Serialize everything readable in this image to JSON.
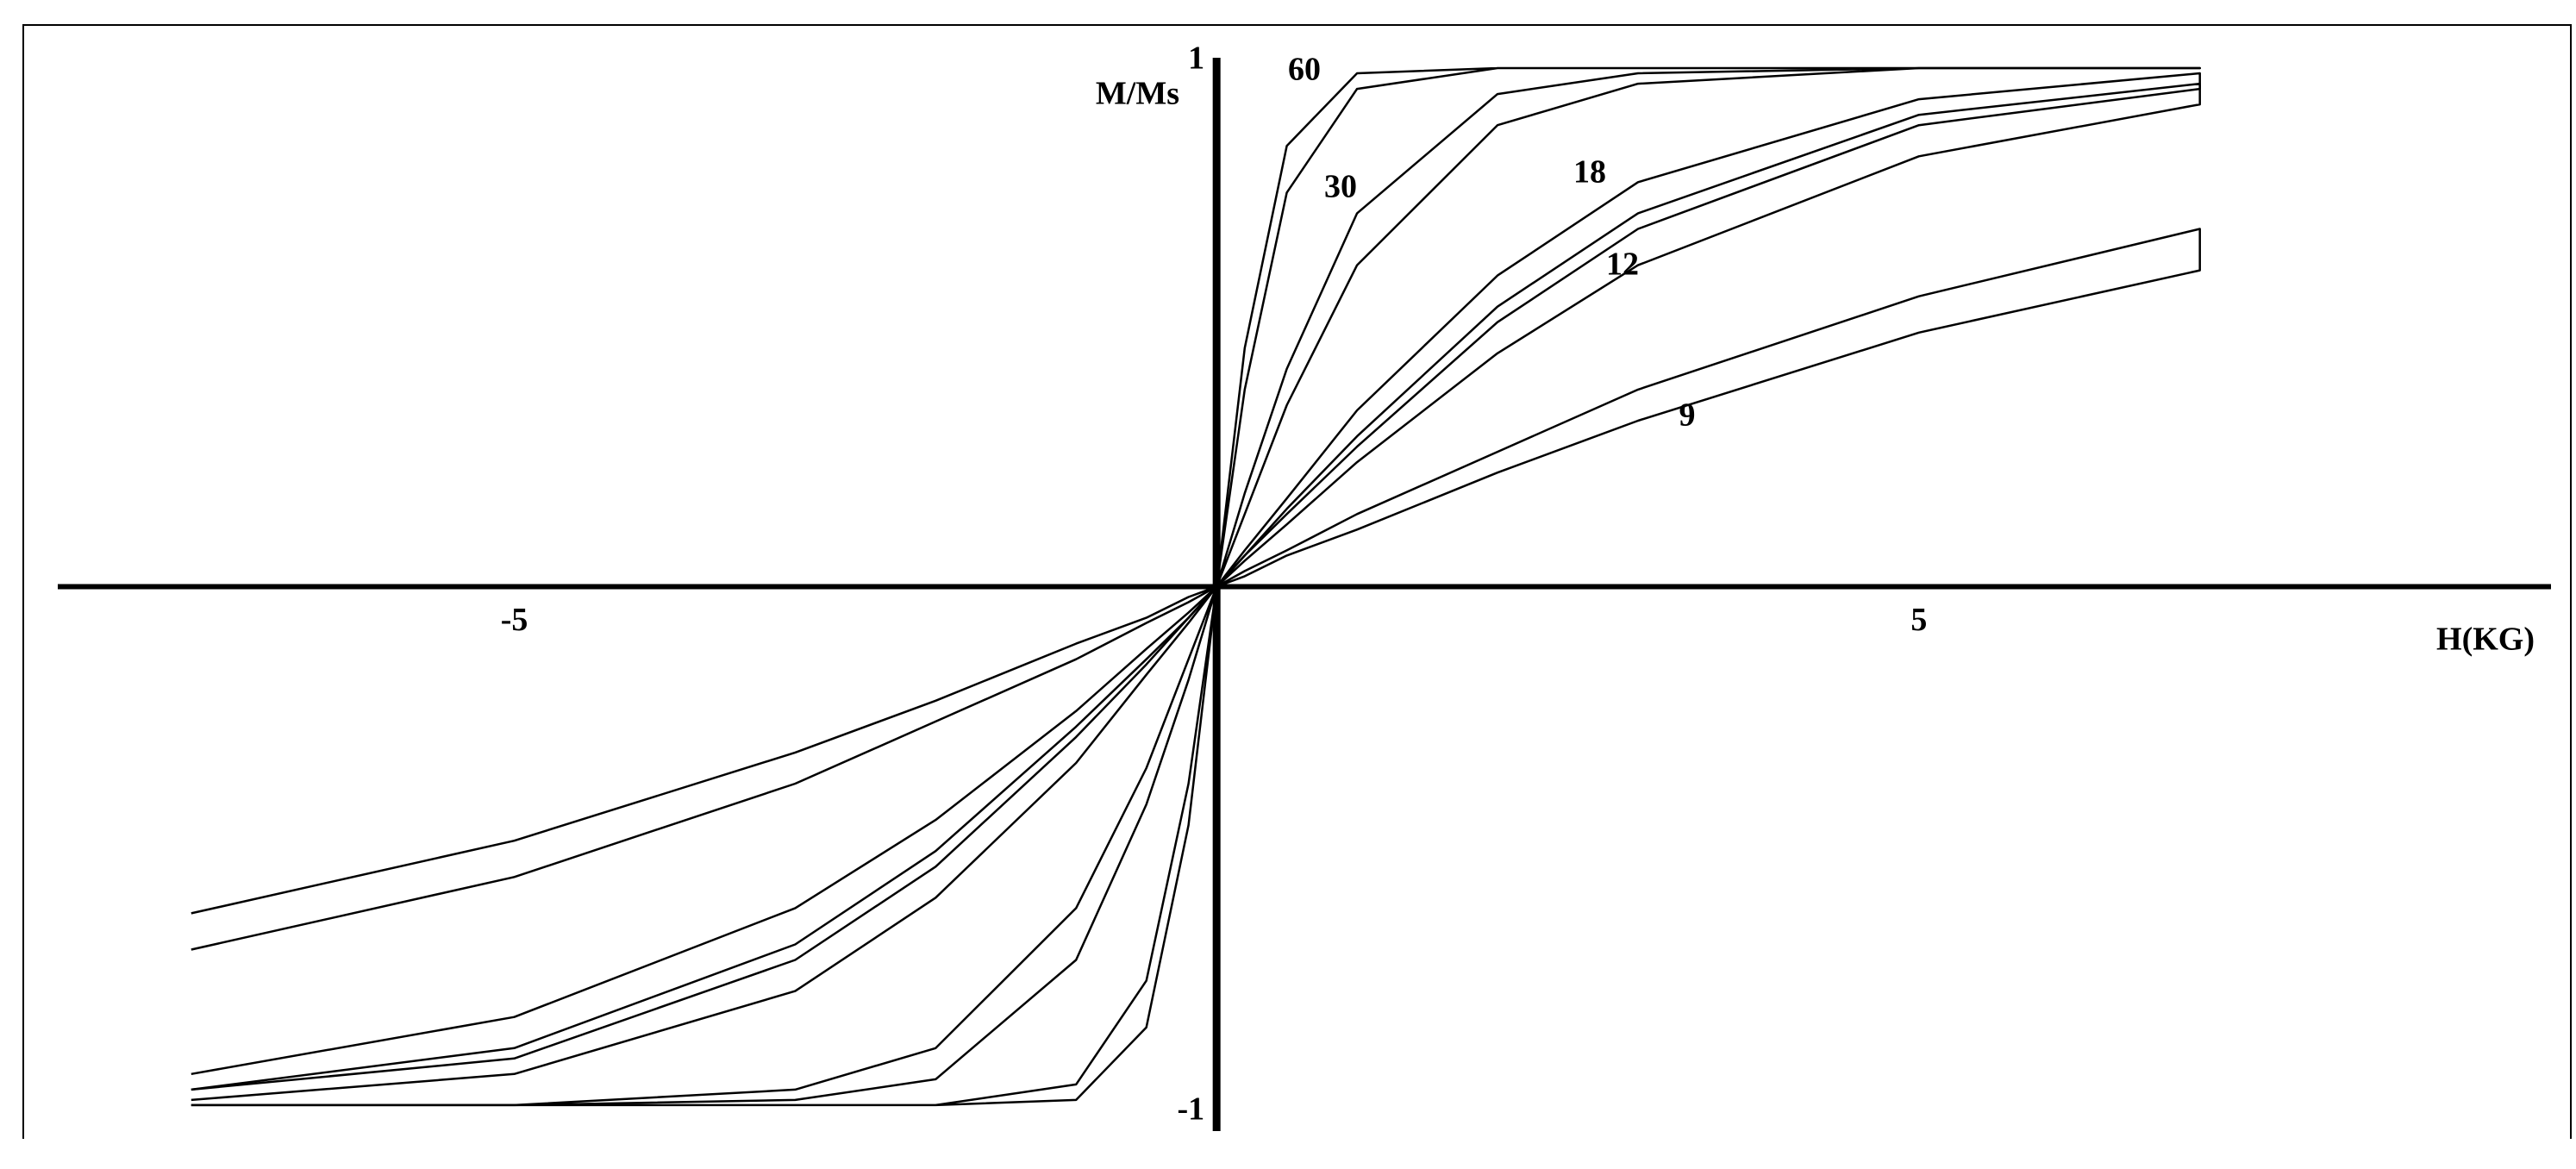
{
  "chart_data": {
    "type": "line",
    "x_label": "H(KG)",
    "y_label": "M/Ms",
    "x": [
      -7.3,
      -5,
      -3,
      -2,
      -1,
      -0.5,
      -0.2,
      0,
      0.2,
      0.5,
      1,
      2,
      3,
      5,
      7,
      7,
      5,
      3,
      2,
      1,
      0.5,
      0.2,
      0,
      -0.2,
      -0.5,
      -1,
      -2,
      -3,
      -5,
      -7.3
    ],
    "xlim": [
      -8.25,
      9.5
    ],
    "ylim": [
      -1.05,
      1.02
    ],
    "xticks": [
      -5,
      5
    ],
    "yticks": [
      1,
      -1
    ],
    "grid": false,
    "series": [
      {
        "name": "60",
        "color": "#000000",
        "values": [
          -1,
          -1,
          -1,
          -1,
          -0.99,
          -0.85,
          -0.46,
          0,
          0.46,
          0.85,
          0.99,
          1,
          1,
          1,
          1,
          1,
          1,
          1,
          1,
          0.96,
          0.76,
          0.38,
          0,
          -0.38,
          -0.76,
          -0.96,
          -1,
          -1,
          -1,
          -1
        ]
      },
      {
        "name": "30",
        "color": "#000000",
        "values": [
          -1,
          -1,
          -0.99,
          -0.95,
          -0.72,
          -0.42,
          -0.18,
          0,
          0.18,
          0.42,
          0.72,
          0.95,
          0.99,
          1,
          1,
          1,
          1,
          0.97,
          0.89,
          0.62,
          0.35,
          0.14,
          0,
          -0.14,
          -0.35,
          -0.62,
          -0.89,
          -0.97,
          -1,
          -1
        ]
      },
      {
        "name": "18",
        "color": "#000000",
        "values": [
          -0.99,
          -0.94,
          -0.78,
          -0.6,
          -0.34,
          -0.17,
          -0.07,
          0,
          0.07,
          0.17,
          0.34,
          0.6,
          0.78,
          0.94,
          0.99,
          0.96,
          0.89,
          0.69,
          0.51,
          0.27,
          0.14,
          0.06,
          0,
          -0.06,
          -0.14,
          -0.27,
          -0.51,
          -0.69,
          -0.89,
          -0.97
        ]
      },
      {
        "name": "12",
        "color": "#000000",
        "values": [
          -0.97,
          -0.91,
          -0.72,
          -0.54,
          -0.29,
          -0.15,
          -0.06,
          0,
          0.06,
          0.15,
          0.29,
          0.54,
          0.72,
          0.91,
          0.97,
          0.93,
          0.83,
          0.62,
          0.45,
          0.24,
          0.12,
          0.05,
          0,
          -0.05,
          -0.12,
          -0.24,
          -0.45,
          -0.62,
          -0.83,
          -0.94
        ]
      },
      {
        "name": "9",
        "color": "#000000",
        "values": [
          -0.7,
          -0.56,
          -0.38,
          -0.26,
          -0.14,
          -0.07,
          -0.03,
          0,
          0.03,
          0.07,
          0.14,
          0.26,
          0.38,
          0.56,
          0.69,
          0.61,
          0.49,
          0.32,
          0.22,
          0.11,
          0.06,
          0.02,
          0,
          -0.02,
          -0.06,
          -0.11,
          -0.22,
          -0.32,
          -0.49,
          -0.63
        ]
      }
    ]
  }
}
